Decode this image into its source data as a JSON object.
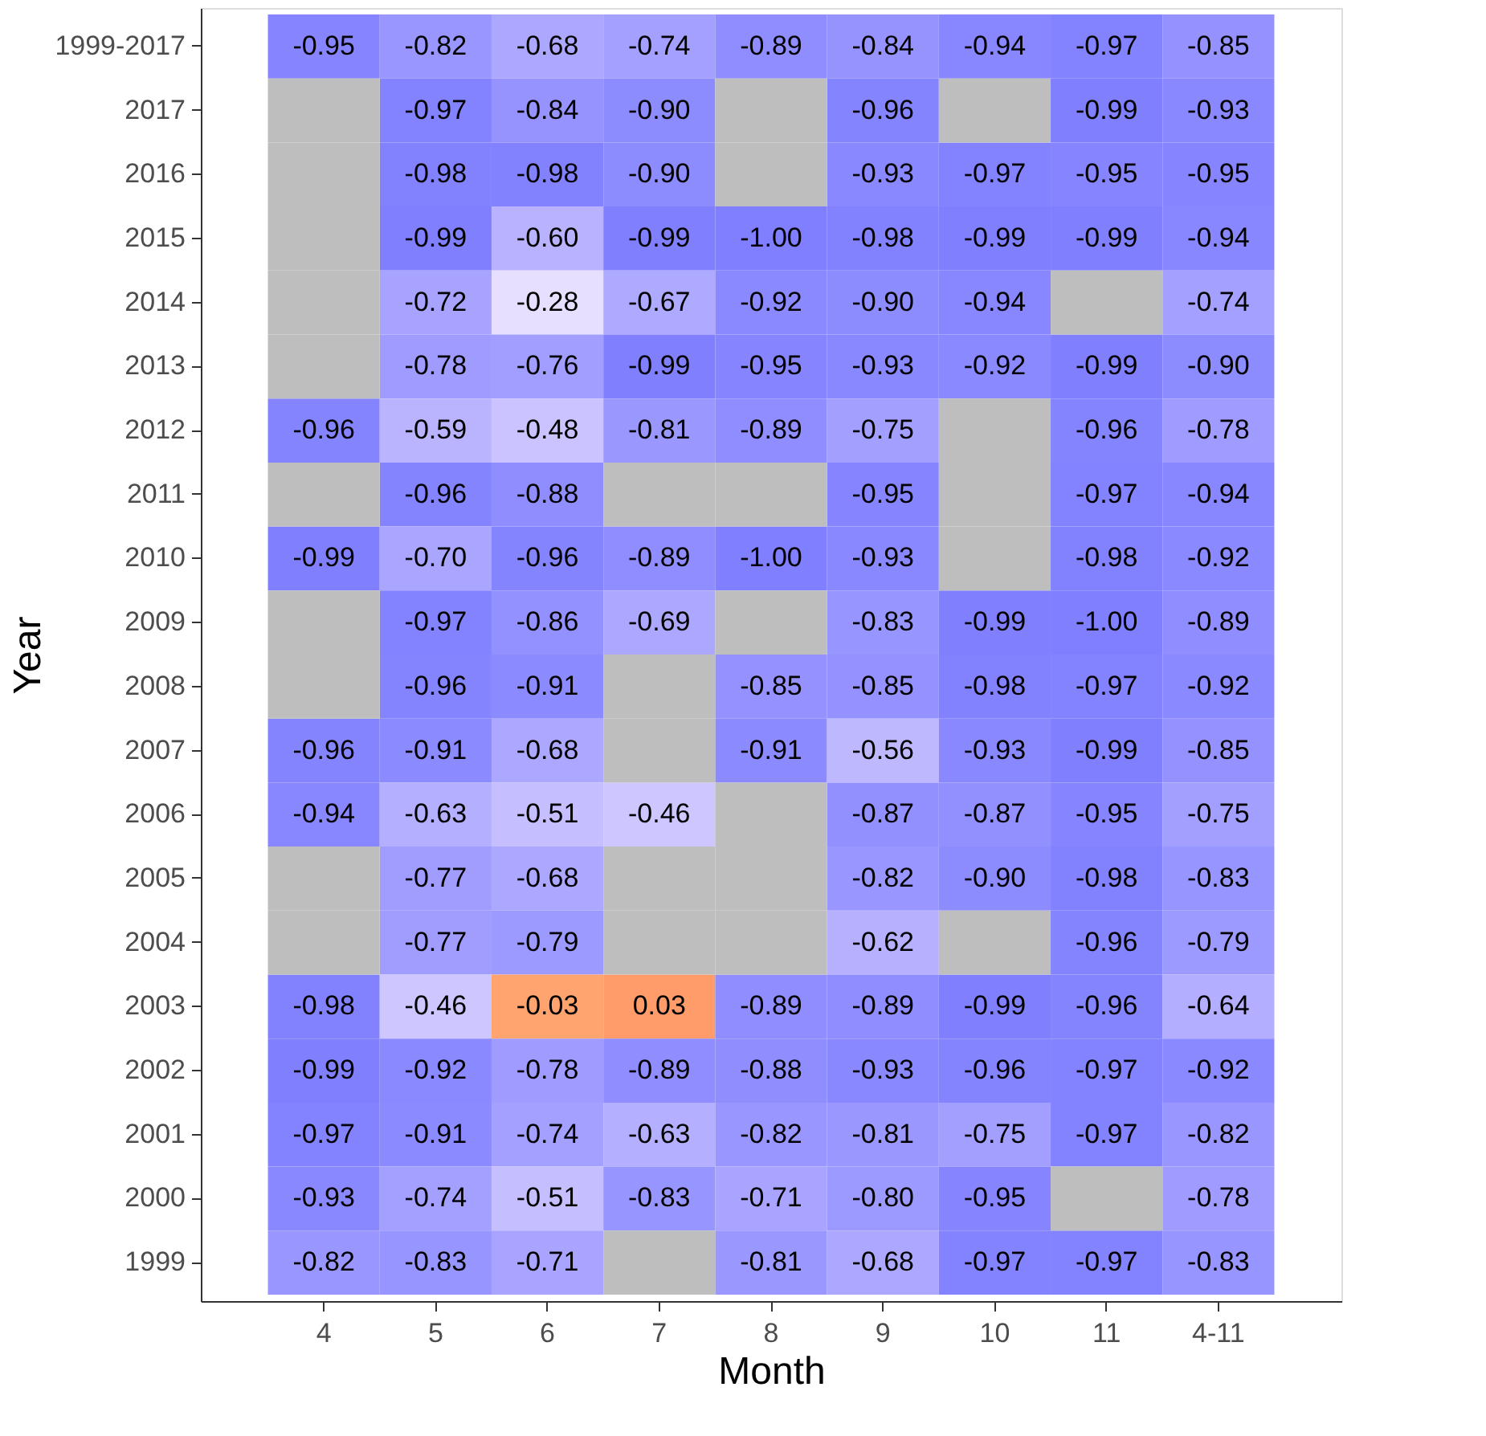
{
  "chart_data": {
    "type": "heatmap",
    "xlabel": "Month",
    "ylabel": "Year",
    "categories": [
      "4",
      "5",
      "6",
      "7",
      "8",
      "9",
      "10",
      "11",
      "4-11"
    ],
    "y_categories": [
      "1999-2017",
      "2017",
      "2016",
      "2015",
      "2014",
      "2013",
      "2012",
      "2011",
      "2010",
      "2009",
      "2008",
      "2007",
      "2006",
      "2005",
      "2004",
      "2003",
      "2002",
      "2001",
      "2000",
      "1999"
    ],
    "cells": [
      [
        -0.95,
        -0.82,
        -0.68,
        -0.74,
        -0.89,
        -0.84,
        -0.94,
        -0.97,
        -0.85
      ],
      [
        null,
        -0.97,
        -0.84,
        -0.9,
        null,
        -0.96,
        null,
        -0.99,
        -0.93
      ],
      [
        null,
        -0.98,
        -0.98,
        -0.9,
        null,
        -0.93,
        -0.97,
        -0.95,
        -0.95
      ],
      [
        null,
        -0.99,
        -0.6,
        -0.99,
        -1.0,
        -0.98,
        -0.99,
        -0.99,
        -0.94
      ],
      [
        null,
        -0.72,
        -0.28,
        -0.67,
        -0.92,
        -0.9,
        -0.94,
        null,
        -0.74
      ],
      [
        null,
        -0.78,
        -0.76,
        -0.99,
        -0.95,
        -0.93,
        -0.92,
        -0.99,
        -0.9
      ],
      [
        -0.96,
        -0.59,
        -0.48,
        -0.81,
        -0.89,
        -0.75,
        null,
        -0.96,
        -0.78
      ],
      [
        null,
        -0.96,
        -0.88,
        null,
        null,
        -0.95,
        null,
        -0.97,
        -0.94
      ],
      [
        -0.99,
        -0.7,
        -0.96,
        -0.89,
        -1.0,
        -0.93,
        null,
        -0.98,
        -0.92
      ],
      [
        null,
        -0.97,
        -0.86,
        -0.69,
        null,
        -0.83,
        -0.99,
        -1.0,
        -0.89
      ],
      [
        null,
        -0.96,
        -0.91,
        null,
        -0.85,
        -0.85,
        -0.98,
        -0.97,
        -0.92
      ],
      [
        -0.96,
        -0.91,
        -0.68,
        null,
        -0.91,
        -0.56,
        -0.93,
        -0.99,
        -0.85
      ],
      [
        -0.94,
        -0.63,
        -0.51,
        -0.46,
        null,
        -0.87,
        -0.87,
        -0.95,
        -0.75
      ],
      [
        null,
        -0.77,
        -0.68,
        null,
        null,
        -0.82,
        -0.9,
        -0.98,
        -0.83
      ],
      [
        null,
        -0.77,
        -0.79,
        null,
        null,
        -0.62,
        null,
        -0.96,
        -0.79
      ],
      [
        -0.98,
        -0.46,
        -0.03,
        0.03,
        -0.89,
        -0.89,
        -0.99,
        -0.96,
        -0.64
      ],
      [
        -0.99,
        -0.92,
        -0.78,
        -0.89,
        -0.88,
        -0.93,
        -0.96,
        -0.97,
        -0.92
      ],
      [
        -0.97,
        -0.91,
        -0.74,
        -0.63,
        -0.82,
        -0.81,
        -0.75,
        -0.97,
        -0.82
      ],
      [
        -0.93,
        -0.74,
        -0.51,
        -0.83,
        -0.71,
        -0.8,
        -0.95,
        null,
        -0.78
      ],
      [
        -0.82,
        -0.83,
        -0.71,
        null,
        -0.81,
        -0.68,
        -0.97,
        -0.97,
        -0.83
      ]
    ],
    "cell_labels": [
      [
        "-0.95",
        "-0.82",
        "-0.68",
        "-0.74",
        "-0.89",
        "-0.84",
        "-0.94",
        "-0.97",
        "-0.85"
      ],
      [
        null,
        "-0.97",
        "-0.84",
        "-0.90",
        null,
        "-0.96",
        null,
        "-0.99",
        "-0.93"
      ],
      [
        null,
        "-0.98",
        "-0.98",
        "-0.90",
        null,
        "-0.93",
        "-0.97",
        "-0.95",
        "-0.95"
      ],
      [
        null,
        "-0.99",
        "-0.60",
        "-0.99",
        "-1.00",
        "-0.98",
        "-0.99",
        "-0.99",
        "-0.94"
      ],
      [
        null,
        "-0.72",
        "-0.28",
        "-0.67",
        "-0.92",
        "-0.90",
        "-0.94",
        null,
        "-0.74"
      ],
      [
        null,
        "-0.78",
        "-0.76",
        "-0.99",
        "-0.95",
        "-0.93",
        "-0.92",
        "-0.99",
        "-0.90"
      ],
      [
        "-0.96",
        "-0.59",
        "-0.48",
        "-0.81",
        "-0.89",
        "-0.75",
        null,
        "-0.96",
        "-0.78"
      ],
      [
        null,
        "-0.96",
        "-0.88",
        null,
        null,
        "-0.95",
        null,
        "-0.97",
        "-0.94"
      ],
      [
        "-0.99",
        "-0.70",
        "-0.96",
        "-0.89",
        "-1.00",
        "-0.93",
        null,
        "-0.98",
        "-0.92"
      ],
      [
        null,
        "-0.97",
        "-0.86",
        "-0.69",
        null,
        "-0.83",
        "-0.99",
        "-1.00",
        "-0.89"
      ],
      [
        null,
        "-0.96",
        "-0.91",
        null,
        "-0.85",
        "-0.85",
        "-0.98",
        "-0.97",
        "-0.92"
      ],
      [
        "-0.96",
        "-0.91",
        "-0.68",
        null,
        "-0.91",
        "-0.56",
        "-0.93",
        "-0.99",
        "-0.85"
      ],
      [
        "-0.94",
        "-0.63",
        "-0.51",
        "-0.46",
        null,
        "-0.87",
        "-0.87",
        "-0.95",
        "-0.75"
      ],
      [
        null,
        "-0.77",
        "-0.68",
        null,
        null,
        "-0.82",
        "-0.90",
        "-0.98",
        "-0.83"
      ],
      [
        null,
        "-0.77",
        "-0.79",
        null,
        null,
        "-0.62",
        null,
        "-0.96",
        "-0.79"
      ],
      [
        "-0.98",
        "-0.46",
        "-0.03",
        "0.03",
        "-0.89",
        "-0.89",
        "-0.99",
        "-0.96",
        "-0.64"
      ],
      [
        "-0.99",
        "-0.92",
        "-0.78",
        "-0.89",
        "-0.88",
        "-0.93",
        "-0.96",
        "-0.97",
        "-0.92"
      ],
      [
        "-0.97",
        "-0.91",
        "-0.74",
        "-0.63",
        "-0.82",
        "-0.81",
        "-0.75",
        "-0.97",
        "-0.82"
      ],
      [
        "-0.93",
        "-0.74",
        "-0.51",
        "-0.83",
        "-0.71",
        "-0.80",
        "-0.95",
        null,
        "-0.78"
      ],
      [
        "-0.82",
        "-0.83",
        "-0.71",
        null,
        "-0.81",
        "-0.68",
        "-0.97",
        "-0.97",
        "-0.83"
      ]
    ]
  }
}
